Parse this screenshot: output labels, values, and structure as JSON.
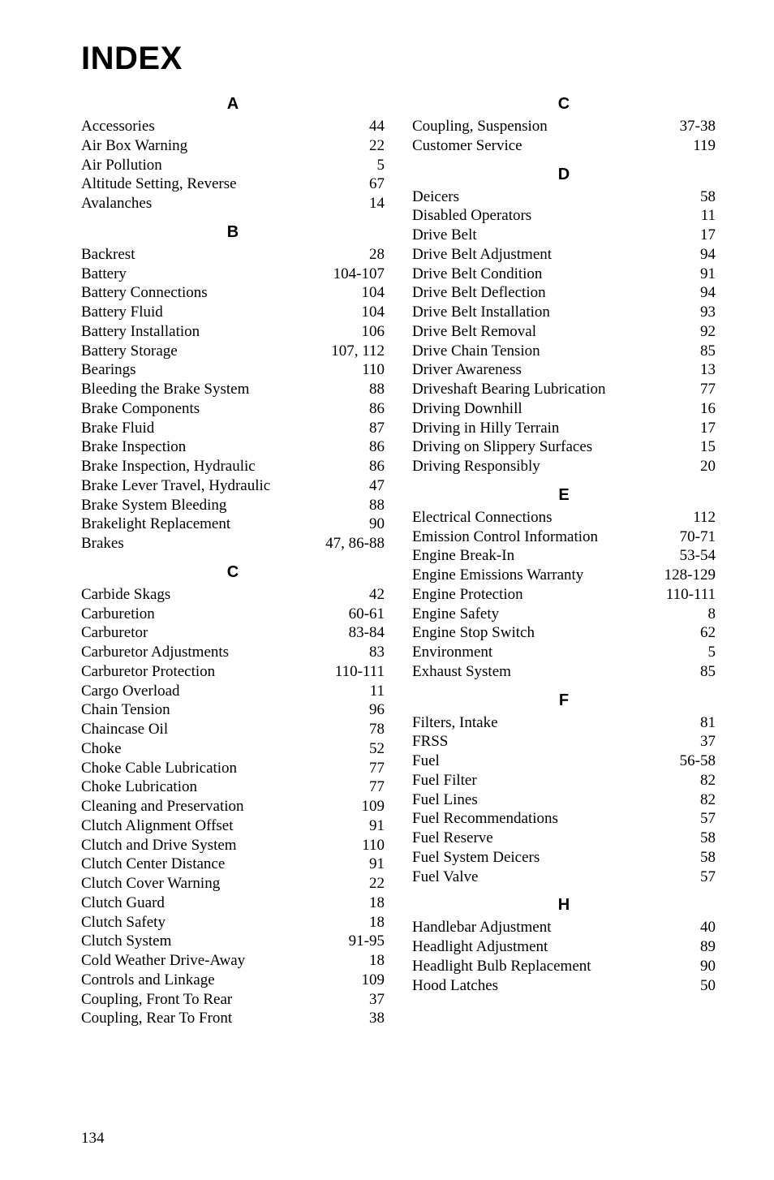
{
  "title": "INDEX",
  "page_number": "134",
  "columns": [
    {
      "sections": [
        {
          "letter": "A",
          "entries": [
            {
              "label": "Accessories",
              "page": "44"
            },
            {
              "label": "Air Box Warning",
              "page": "22"
            },
            {
              "label": "Air Pollution",
              "page": "5"
            },
            {
              "label": "Altitude Setting, Reverse",
              "page": "67"
            },
            {
              "label": "Avalanches",
              "page": "14"
            }
          ]
        },
        {
          "letter": "B",
          "entries": [
            {
              "label": "Backrest",
              "page": "28"
            },
            {
              "label": "Battery",
              "page": "104-107"
            },
            {
              "label": "Battery Connections",
              "page": "104"
            },
            {
              "label": "Battery Fluid",
              "page": "104"
            },
            {
              "label": "Battery Installation",
              "page": "106"
            },
            {
              "label": "Battery Storage",
              "page": "107, 112"
            },
            {
              "label": "Bearings",
              "page": "110"
            },
            {
              "label": "Bleeding the Brake System",
              "page": "88"
            },
            {
              "label": "Brake Components",
              "page": "86"
            },
            {
              "label": "Brake Fluid",
              "page": "87"
            },
            {
              "label": "Brake Inspection",
              "page": "86"
            },
            {
              "label": "Brake Inspection, Hydraulic",
              "page": "86"
            },
            {
              "label": "Brake Lever Travel, Hydraulic",
              "page": "47"
            },
            {
              "label": "Brake System Bleeding",
              "page": "88"
            },
            {
              "label": "Brakelight Replacement",
              "page": "90"
            },
            {
              "label": "Brakes",
              "page": "47, 86-88"
            }
          ]
        },
        {
          "letter": "C",
          "entries": [
            {
              "label": "Carbide Skags",
              "page": "42"
            },
            {
              "label": "Carburetion",
              "page": "60-61"
            },
            {
              "label": "Carburetor",
              "page": "83-84"
            },
            {
              "label": "Carburetor Adjustments",
              "page": "83"
            },
            {
              "label": "Carburetor Protection",
              "page": "110-111"
            },
            {
              "label": "Cargo Overload",
              "page": "11"
            },
            {
              "label": "Chain Tension",
              "page": "96"
            },
            {
              "label": "Chaincase Oil",
              "page": "78"
            },
            {
              "label": "Choke",
              "page": "52"
            },
            {
              "label": "Choke Cable Lubrication",
              "page": "77"
            },
            {
              "label": "Choke Lubrication",
              "page": "77"
            },
            {
              "label": "Cleaning and Preservation",
              "page": "109"
            },
            {
              "label": "Clutch Alignment Offset",
              "page": "91"
            },
            {
              "label": "Clutch and Drive System",
              "page": "110"
            },
            {
              "label": "Clutch Center Distance",
              "page": "91"
            },
            {
              "label": "Clutch Cover Warning",
              "page": "22"
            },
            {
              "label": "Clutch Guard",
              "page": "18"
            },
            {
              "label": "Clutch Safety",
              "page": "18"
            },
            {
              "label": "Clutch System",
              "page": "91-95"
            },
            {
              "label": "Cold Weather Drive-Away",
              "page": "18"
            },
            {
              "label": "Controls and Linkage",
              "page": "109"
            },
            {
              "label": "Coupling, Front To Rear",
              "page": "37"
            },
            {
              "label": "Coupling, Rear To Front",
              "page": "38"
            }
          ]
        }
      ]
    },
    {
      "sections": [
        {
          "letter": "C",
          "entries": [
            {
              "label": "Coupling, Suspension",
              "page": "37-38"
            },
            {
              "label": "Customer Service",
              "page": "119"
            }
          ]
        },
        {
          "letter": "D",
          "entries": [
            {
              "label": "Deicers",
              "page": "58"
            },
            {
              "label": "Disabled Operators",
              "page": "11"
            },
            {
              "label": "Drive Belt",
              "page": "17"
            },
            {
              "label": "Drive Belt Adjustment",
              "page": "94"
            },
            {
              "label": "Drive Belt Condition",
              "page": "91"
            },
            {
              "label": "Drive Belt Deflection",
              "page": "94"
            },
            {
              "label": "Drive Belt Installation",
              "page": "93"
            },
            {
              "label": "Drive Belt Removal",
              "page": "92"
            },
            {
              "label": "Drive Chain Tension",
              "page": "85"
            },
            {
              "label": "Driver Awareness",
              "page": "13"
            },
            {
              "label": "Driveshaft Bearing Lubrication",
              "page": "77"
            },
            {
              "label": "Driving Downhill",
              "page": "16"
            },
            {
              "label": "Driving in Hilly Terrain",
              "page": "17"
            },
            {
              "label": "Driving on Slippery Surfaces",
              "page": "15"
            },
            {
              "label": "Driving Responsibly",
              "page": "20"
            }
          ]
        },
        {
          "letter": "E",
          "entries": [
            {
              "label": "Electrical Connections",
              "page": "112"
            },
            {
              "label": "Emission Control Information",
              "page": "70-71"
            },
            {
              "label": "Engine Break-In",
              "page": "53-54"
            },
            {
              "label": "Engine Emissions Warranty",
              "page": "128-129"
            },
            {
              "label": "Engine Protection",
              "page": "110-111"
            },
            {
              "label": "Engine Safety",
              "page": "8"
            },
            {
              "label": "Engine Stop Switch",
              "page": "62"
            },
            {
              "label": "Environment",
              "page": "5"
            },
            {
              "label": "Exhaust System",
              "page": "85"
            }
          ]
        },
        {
          "letter": "F",
          "entries": [
            {
              "label": "Filters, Intake",
              "page": "81"
            },
            {
              "label": "FRSS",
              "page": "37"
            },
            {
              "label": "Fuel",
              "page": "56-58"
            },
            {
              "label": "Fuel Filter",
              "page": "82"
            },
            {
              "label": "Fuel Lines",
              "page": "82"
            },
            {
              "label": "Fuel Recommendations",
              "page": "57"
            },
            {
              "label": "Fuel Reserve",
              "page": "58"
            },
            {
              "label": "Fuel System Deicers",
              "page": "58"
            },
            {
              "label": "Fuel Valve",
              "page": "57"
            }
          ]
        },
        {
          "letter": "H",
          "entries": [
            {
              "label": "Handlebar Adjustment",
              "page": "40"
            },
            {
              "label": "Headlight Adjustment",
              "page": "89"
            },
            {
              "label": "Headlight Bulb Replacement",
              "page": "90"
            },
            {
              "label": "Hood Latches",
              "page": "50"
            }
          ]
        }
      ]
    }
  ]
}
